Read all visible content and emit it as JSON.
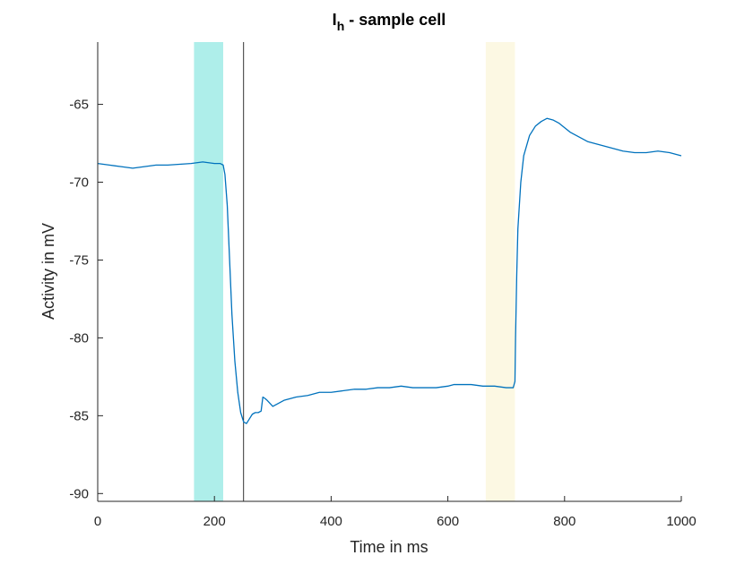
{
  "chart_data": {
    "type": "line",
    "title": "I",
    "title_subscript": "h",
    "title_suffix": " - sample cell",
    "xlabel": "Time in ms",
    "ylabel": "Activity in mV",
    "xlim": [
      0,
      1000
    ],
    "ylim": [
      -90.5,
      -61
    ],
    "xticks": [
      0,
      200,
      400,
      600,
      800,
      1000
    ],
    "yticks": [
      -90,
      -85,
      -80,
      -75,
      -70,
      -65
    ],
    "grid": false,
    "shaded_regions": [
      {
        "x0": 165,
        "x1": 215,
        "color": "#aeeeea"
      },
      {
        "x0": 665,
        "x1": 715,
        "color": "#fcf8e3"
      }
    ],
    "vertical_lines": [
      {
        "x": 250,
        "color": "#000000"
      }
    ],
    "series": [
      {
        "color": "#0072bd",
        "x": [
          0,
          20,
          40,
          60,
          80,
          100,
          120,
          140,
          160,
          180,
          200,
          210,
          215,
          218,
          222,
          226,
          230,
          235,
          240,
          245,
          250,
          255,
          260,
          265,
          270,
          275,
          280,
          283,
          287,
          290,
          295,
          300,
          310,
          320,
          340,
          360,
          380,
          400,
          420,
          440,
          460,
          480,
          500,
          520,
          540,
          560,
          580,
          600,
          610,
          620,
          640,
          660,
          680,
          700,
          712,
          715,
          716,
          718,
          720,
          725,
          730,
          740,
          750,
          760,
          770,
          780,
          790,
          800,
          810,
          820,
          830,
          840,
          850,
          860,
          870,
          880,
          900,
          920,
          940,
          960,
          980,
          1000
        ],
        "values": [
          -68.8,
          -68.9,
          -69.0,
          -69.1,
          -69.0,
          -68.9,
          -68.9,
          -68.85,
          -68.8,
          -68.7,
          -68.8,
          -68.8,
          -68.9,
          -69.5,
          -71.5,
          -75.0,
          -78.5,
          -81.5,
          -83.5,
          -84.8,
          -85.4,
          -85.5,
          -85.2,
          -84.9,
          -84.8,
          -84.8,
          -84.7,
          -83.8,
          -83.9,
          -84.0,
          -84.2,
          -84.4,
          -84.2,
          -84.0,
          -83.8,
          -83.7,
          -83.5,
          -83.5,
          -83.4,
          -83.3,
          -83.3,
          -83.2,
          -83.2,
          -83.1,
          -83.2,
          -83.2,
          -83.2,
          -83.1,
          -83.0,
          -83.0,
          -83.0,
          -83.1,
          -83.1,
          -83.2,
          -83.2,
          -82.8,
          -80.0,
          -76.0,
          -73.0,
          -70.0,
          -68.3,
          -67.0,
          -66.4,
          -66.1,
          -65.9,
          -66.0,
          -66.2,
          -66.5,
          -66.8,
          -67.0,
          -67.2,
          -67.4,
          -67.5,
          -67.6,
          -67.7,
          -67.8,
          -68.0,
          -68.1,
          -68.1,
          -68.0,
          -68.1,
          -68.3
        ]
      }
    ]
  }
}
